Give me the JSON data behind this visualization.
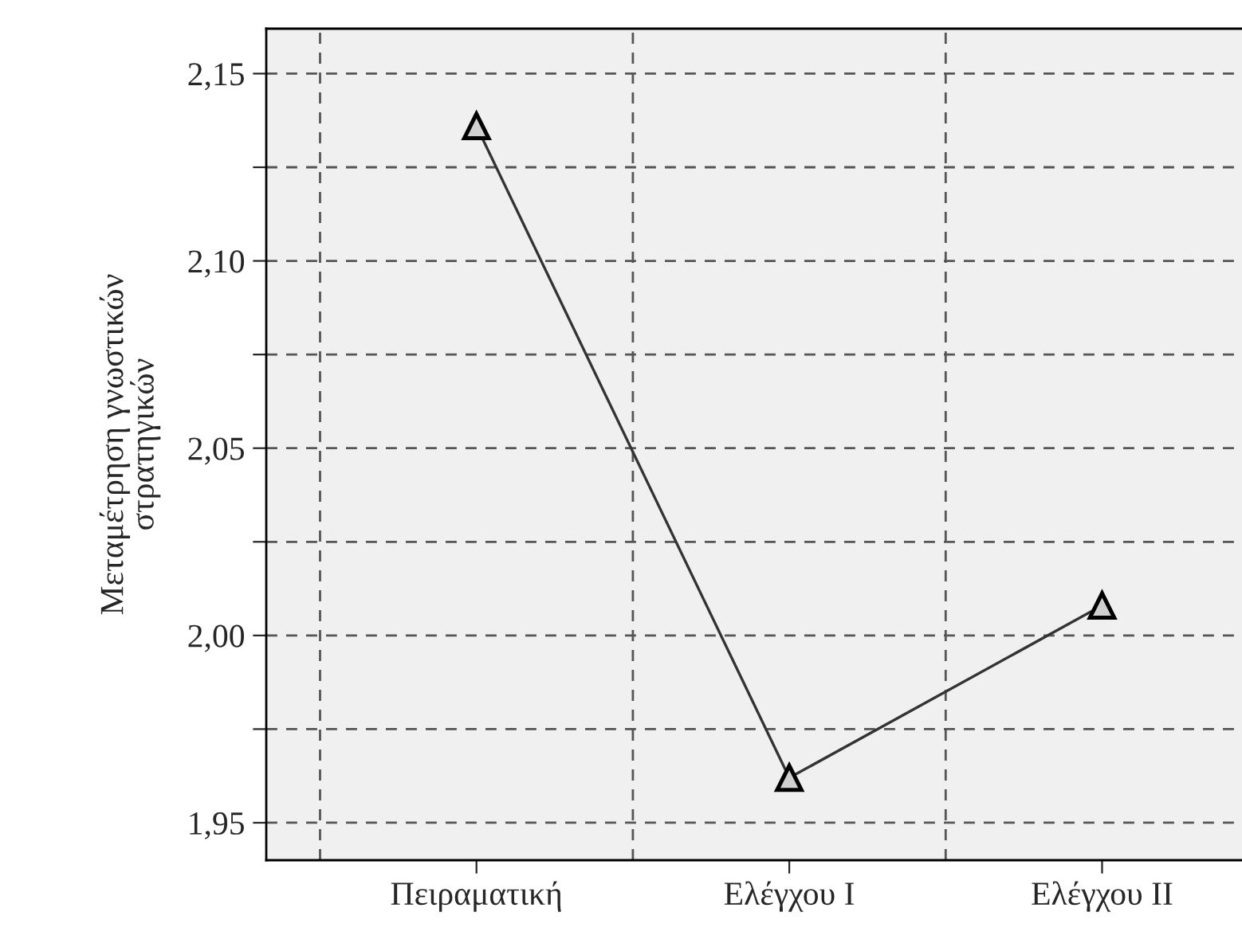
{
  "chart_data": {
    "type": "line",
    "ylabel": "Μεταμέτρηση γνωστικών\nστρατηγικών",
    "categories": [
      "Πειραματική",
      "Ελέγχου Ι",
      "Ελέγχου ΙΙ"
    ],
    "series": [
      {
        "color": "#333333",
        "values": [
          2.136,
          1.962,
          2.008
        ]
      }
    ],
    "ylim": [
      1.94,
      2.162
    ],
    "yticks": [
      {
        "value": 1.95,
        "label": "1,95"
      },
      {
        "value": 1.975,
        "label": null
      },
      {
        "value": 2.0,
        "label": "2,00"
      },
      {
        "value": 2.025,
        "label": null
      },
      {
        "value": 2.05,
        "label": "2,05"
      },
      {
        "value": 2.075,
        "label": null
      },
      {
        "value": 2.1,
        "label": "2,10"
      },
      {
        "value": 2.125,
        "label": null
      },
      {
        "value": 2.15,
        "label": "2,15"
      }
    ],
    "grid": true,
    "marker": "triangle",
    "line_style": "solid"
  }
}
